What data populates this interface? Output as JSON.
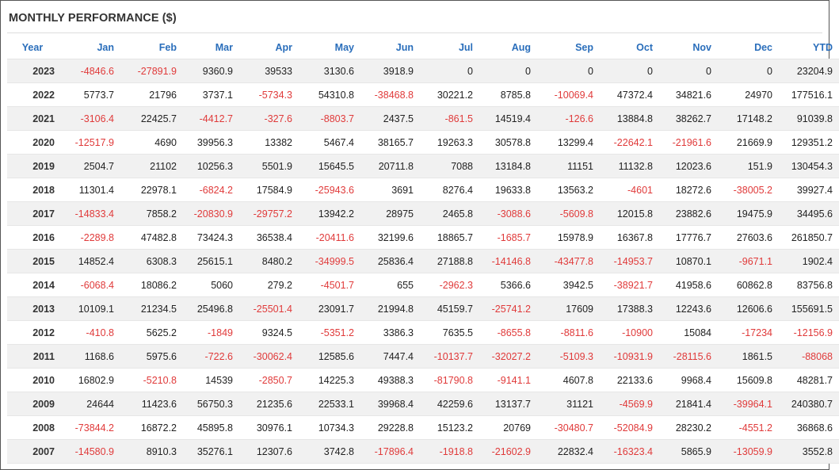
{
  "title": "MONTHLY PERFORMANCE ($)",
  "colors": {
    "header_text": "#2a6ebb",
    "negative": "#e03a3a",
    "stripe": "#f1f1f1"
  },
  "columns": [
    "Year",
    "Jan",
    "Feb",
    "Mar",
    "Apr",
    "May",
    "Jun",
    "Jul",
    "Aug",
    "Sep",
    "Oct",
    "Nov",
    "Dec",
    "YTD"
  ],
  "rows": [
    [
      "2023",
      "-4846.6",
      "-27891.9",
      "9360.9",
      "39533",
      "3130.6",
      "3918.9",
      "0",
      "0",
      "0",
      "0",
      "0",
      "0",
      "23204.9"
    ],
    [
      "2022",
      "5773.7",
      "21796",
      "3737.1",
      "-5734.3",
      "54310.8",
      "-38468.8",
      "30221.2",
      "8785.8",
      "-10069.4",
      "47372.4",
      "34821.6",
      "24970",
      "177516.1"
    ],
    [
      "2021",
      "-3106.4",
      "22425.7",
      "-4412.7",
      "-327.6",
      "-8803.7",
      "2437.5",
      "-861.5",
      "14519.4",
      "-126.6",
      "13884.8",
      "38262.7",
      "17148.2",
      "91039.8"
    ],
    [
      "2020",
      "-12517.9",
      "4690",
      "39956.3",
      "13382",
      "5467.4",
      "38165.7",
      "19263.3",
      "30578.8",
      "13299.4",
      "-22642.1",
      "-21961.6",
      "21669.9",
      "129351.2"
    ],
    [
      "2019",
      "2504.7",
      "21102",
      "10256.3",
      "5501.9",
      "15645.5",
      "20711.8",
      "7088",
      "13184.8",
      "11151",
      "11132.8",
      "12023.6",
      "151.9",
      "130454.3"
    ],
    [
      "2018",
      "11301.4",
      "22978.1",
      "-6824.2",
      "17584.9",
      "-25943.6",
      "3691",
      "8276.4",
      "19633.8",
      "13563.2",
      "-4601",
      "18272.6",
      "-38005.2",
      "39927.4"
    ],
    [
      "2017",
      "-14833.4",
      "7858.2",
      "-20830.9",
      "-29757.2",
      "13942.2",
      "28975",
      "2465.8",
      "-3088.6",
      "-5609.8",
      "12015.8",
      "23882.6",
      "19475.9",
      "34495.6"
    ],
    [
      "2016",
      "-2289.8",
      "47482.8",
      "73424.3",
      "36538.4",
      "-20411.6",
      "32199.6",
      "18865.7",
      "-1685.7",
      "15978.9",
      "16367.8",
      "17776.7",
      "27603.6",
      "261850.7"
    ],
    [
      "2015",
      "14852.4",
      "6308.3",
      "25615.1",
      "8480.2",
      "-34999.5",
      "25836.4",
      "27188.8",
      "-14146.8",
      "-43477.8",
      "-14953.7",
      "10870.1",
      "-9671.1",
      "1902.4"
    ],
    [
      "2014",
      "-6068.4",
      "18086.2",
      "5060",
      "279.2",
      "-4501.7",
      "655",
      "-2962.3",
      "5366.6",
      "3942.5",
      "-38921.7",
      "41958.6",
      "60862.8",
      "83756.8"
    ],
    [
      "2013",
      "10109.1",
      "21234.5",
      "25496.8",
      "-25501.4",
      "23091.7",
      "21994.8",
      "45159.7",
      "-25741.2",
      "17609",
      "17388.3",
      "12243.6",
      "12606.6",
      "155691.5"
    ],
    [
      "2012",
      "-410.8",
      "5625.2",
      "-1849",
      "9324.5",
      "-5351.2",
      "3386.3",
      "7635.5",
      "-8655.8",
      "-8811.6",
      "-10900",
      "15084",
      "-17234",
      "-12156.9"
    ],
    [
      "2011",
      "1168.6",
      "5975.6",
      "-722.6",
      "-30062.4",
      "12585.6",
      "7447.4",
      "-10137.7",
      "-32027.2",
      "-5109.3",
      "-10931.9",
      "-28115.6",
      "1861.5",
      "-88068"
    ],
    [
      "2010",
      "16802.9",
      "-5210.8",
      "14539",
      "-2850.7",
      "14225.3",
      "49388.3",
      "-81790.8",
      "-9141.1",
      "4607.8",
      "22133.6",
      "9968.4",
      "15609.8",
      "48281.7"
    ],
    [
      "2009",
      "24644",
      "11423.6",
      "56750.3",
      "21235.6",
      "22533.1",
      "39968.4",
      "42259.6",
      "13137.7",
      "31121",
      "-4569.9",
      "21841.4",
      "-39964.1",
      "240380.7"
    ],
    [
      "2008",
      "-73844.2",
      "16872.2",
      "45895.8",
      "30976.1",
      "10734.3",
      "29228.8",
      "15123.2",
      "20769",
      "-30480.7",
      "-52084.9",
      "28230.2",
      "-4551.2",
      "36868.6"
    ],
    [
      "2007",
      "-14580.9",
      "8910.3",
      "35276.1",
      "12307.6",
      "3742.8",
      "-17896.4",
      "-1918.8",
      "-21602.9",
      "22832.4",
      "-16323.4",
      "5865.9",
      "-13059.9",
      "3552.8"
    ]
  ]
}
